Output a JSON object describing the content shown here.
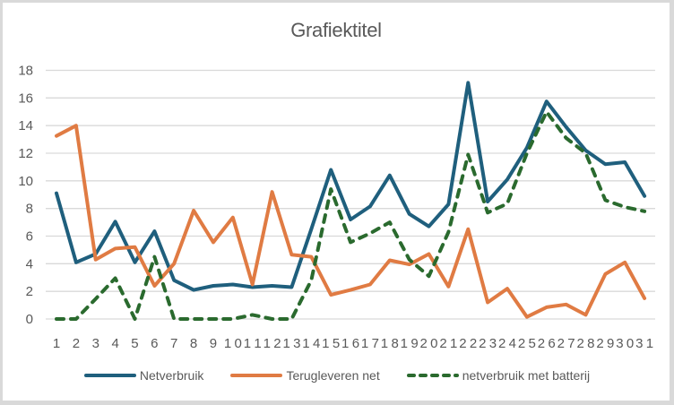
{
  "chart_data": {
    "type": "line",
    "title": "Grafiektitel",
    "xlabel": "",
    "ylabel": "",
    "ylim": [
      0,
      18
    ],
    "yticks": [
      0,
      2,
      4,
      6,
      8,
      10,
      12,
      14,
      16,
      18
    ],
    "grid": true,
    "legend_position": "bottom",
    "categories": [
      "1",
      "2",
      "3",
      "4",
      "5",
      "6",
      "7",
      "8",
      "9",
      "10",
      "11",
      "12",
      "13",
      "14",
      "15",
      "16",
      "17",
      "18",
      "19",
      "20",
      "21",
      "22",
      "23",
      "24",
      "25",
      "26",
      "27",
      "28",
      "29",
      "30",
      "31"
    ],
    "series": [
      {
        "name": "Netverbruik",
        "color": "#1f5f7d",
        "style": "solid",
        "values": [
          9.1,
          4.1,
          4.7,
          7.05,
          4.1,
          6.35,
          2.8,
          2.1,
          2.4,
          2.5,
          2.3,
          2.4,
          2.3,
          6.5,
          10.8,
          7.2,
          8.15,
          10.4,
          7.6,
          6.7,
          8.3,
          17.1,
          8.5,
          10.1,
          12.4,
          15.75,
          13.9,
          12.2,
          11.2,
          11.35,
          8.9
        ]
      },
      {
        "name": "Terugleveren net",
        "color": "#e07b43",
        "style": "solid",
        "values": [
          13.25,
          14.0,
          4.3,
          5.1,
          5.2,
          2.4,
          4.0,
          7.85,
          5.55,
          7.35,
          2.5,
          9.2,
          4.65,
          4.5,
          1.75,
          2.1,
          2.5,
          4.25,
          3.95,
          4.7,
          2.35,
          6.5,
          1.2,
          2.2,
          0.15,
          0.85,
          1.05,
          0.3,
          3.25,
          4.1,
          1.5
        ]
      },
      {
        "name": "netverbruik met batterij",
        "color": "#2a6a2e",
        "style": "dashed",
        "values": [
          0,
          0,
          1.45,
          2.95,
          0,
          4.5,
          0,
          0,
          0,
          0,
          0.3,
          0,
          0,
          2.8,
          9.4,
          5.55,
          6.2,
          7.0,
          4.3,
          3.1,
          6.3,
          11.9,
          7.7,
          8.35,
          12.0,
          15.0,
          13.1,
          12.0,
          8.6,
          8.1,
          7.8
        ]
      }
    ]
  },
  "legend": {
    "items": [
      {
        "label": "Netverbruik"
      },
      {
        "label": "Terugleveren net"
      },
      {
        "label": "netverbruik met batterij"
      }
    ]
  }
}
